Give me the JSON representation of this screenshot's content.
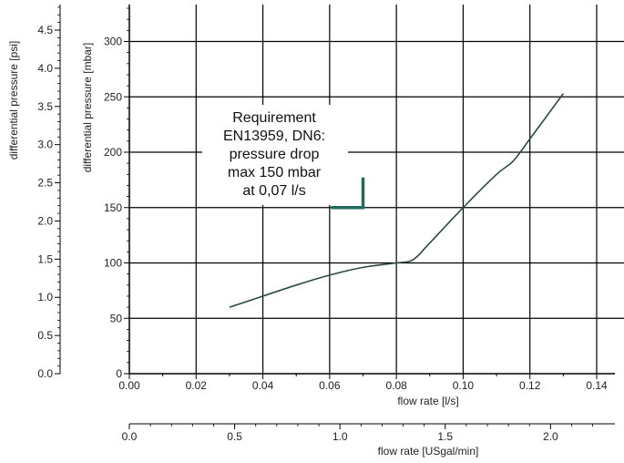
{
  "chart_data": {
    "type": "line",
    "title": "",
    "x_axis_primary": {
      "label": "flow rate [l/s]",
      "range": [
        0.0,
        0.14
      ],
      "ticks": [
        "0.00",
        "0.02",
        "0.04",
        "0.06",
        "0.08",
        "0.10",
        "0.12",
        "0.14"
      ]
    },
    "x_axis_secondary": {
      "label": "flow rate [USgal/min]",
      "ticks": [
        "0.0",
        "0.5",
        "1.0",
        "1.5",
        "2.0"
      ]
    },
    "y_axis_primary": {
      "label": "differential pressure [mbar]",
      "range": [
        0,
        335
      ],
      "ticks": [
        "0",
        "50",
        "100",
        "150",
        "200",
        "250",
        "300"
      ]
    },
    "y_axis_secondary": {
      "label": "differential pressure [psi]",
      "ticks": [
        "0.0",
        "0.5",
        "1.0",
        "1.5",
        "2.0",
        "2.5",
        "3.0",
        "3.5",
        "4.0",
        "4.5"
      ]
    },
    "grid": true,
    "series": [
      {
        "x": [
          0.03,
          0.04,
          0.05,
          0.06,
          0.07,
          0.08,
          0.085,
          0.09,
          0.1,
          0.11,
          0.115,
          0.12,
          0.13
        ],
        "y": [
          60,
          70,
          80,
          89,
          96,
          100,
          103,
          118,
          150,
          180,
          192,
          212,
          253
        ]
      }
    ],
    "annotation": {
      "lines": [
        "Requirement",
        "EN13959, DN6:",
        "pressure drop",
        "max 150 mbar",
        "at 0,07 l/s"
      ],
      "marker_x": 0.07,
      "marker_y": 150,
      "color": "#1f6b5e"
    },
    "line_color": "#2c4a44"
  }
}
